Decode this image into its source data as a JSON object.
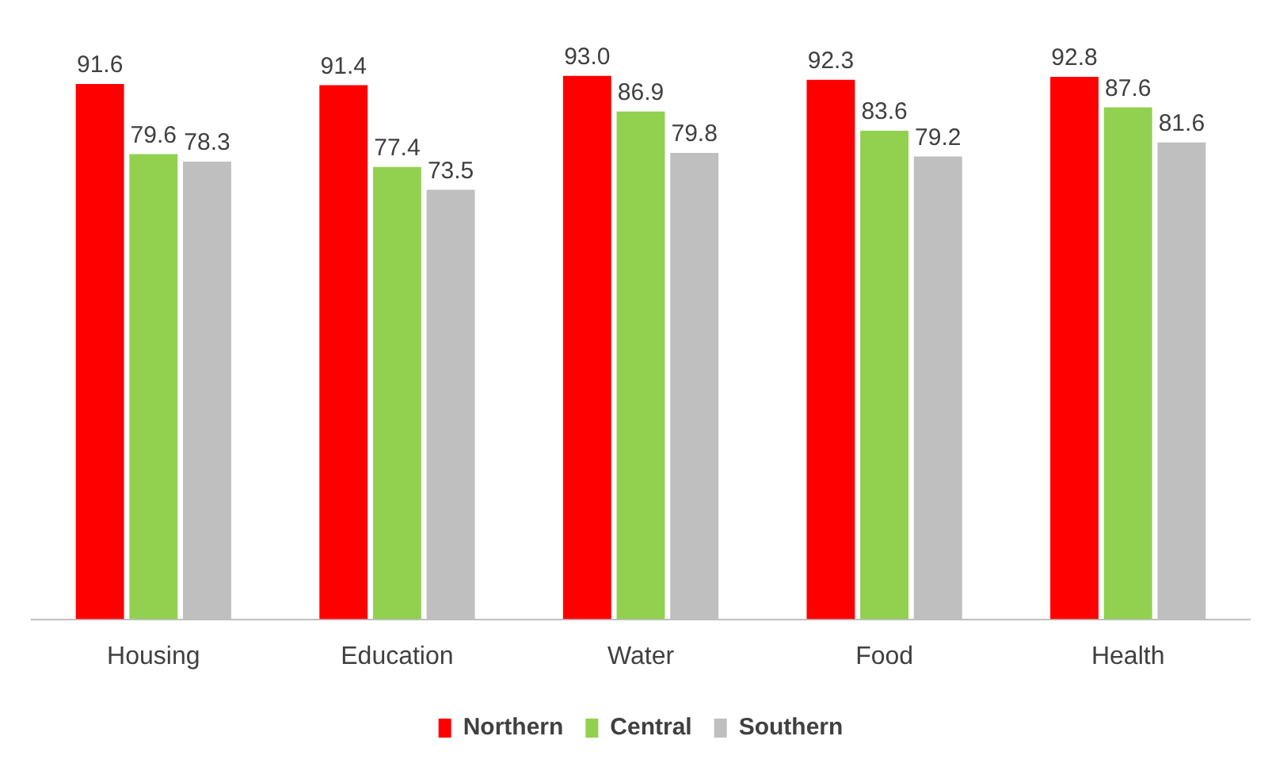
{
  "chart_data": {
    "type": "bar",
    "categories": [
      "Housing",
      "Education",
      "Water",
      "Food",
      "Health"
    ],
    "series": [
      {
        "name": "Northern",
        "color": "#ff0000",
        "values": [
          91.6,
          91.4,
          93.0,
          92.3,
          92.8
        ],
        "value_labels": [
          "91.6",
          "91.4",
          "93.0",
          "92.3",
          "92.8"
        ]
      },
      {
        "name": "Central",
        "color": "#92d050",
        "values": [
          79.6,
          77.4,
          86.9,
          83.6,
          87.6
        ],
        "value_labels": [
          "79.6",
          "77.4",
          "86.9",
          "83.6",
          "87.6"
        ]
      },
      {
        "name": "Southern",
        "color": "#bfbfbf",
        "values": [
          78.3,
          73.5,
          79.8,
          79.2,
          81.6
        ],
        "value_labels": [
          "78.3",
          "73.5",
          "79.8",
          "79.2",
          "81.6"
        ]
      }
    ],
    "legend": "bottom",
    "grid": false,
    "tick_labels": "x"
  }
}
